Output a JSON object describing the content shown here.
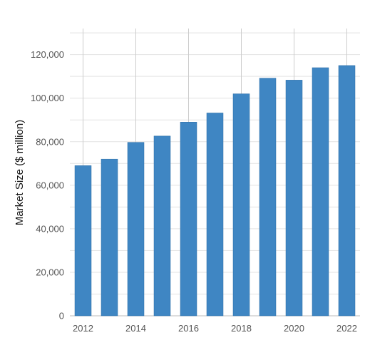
{
  "chart_data": {
    "type": "bar",
    "title": "",
    "xlabel": "",
    "ylabel": "Market Size ($ million)",
    "categories": [
      2012,
      2013,
      2014,
      2015,
      2016,
      2017,
      2018,
      2019,
      2020,
      2021,
      2022
    ],
    "values": [
      69000,
      72000,
      79700,
      82600,
      89000,
      93200,
      102000,
      109200,
      108300,
      114000,
      115000
    ],
    "x_tick_labels": [
      "2012",
      "2014",
      "2016",
      "2018",
      "2020",
      "2022"
    ],
    "y_ticks": [
      0,
      20000,
      40000,
      60000,
      80000,
      100000,
      120000
    ],
    "y_tick_labels": [
      "0",
      "20,000",
      "40,000",
      "60,000",
      "80,000",
      "100,000",
      "120,000"
    ],
    "ylim": [
      0,
      132000
    ],
    "grid": true,
    "bar_color": "#3f86c3"
  }
}
